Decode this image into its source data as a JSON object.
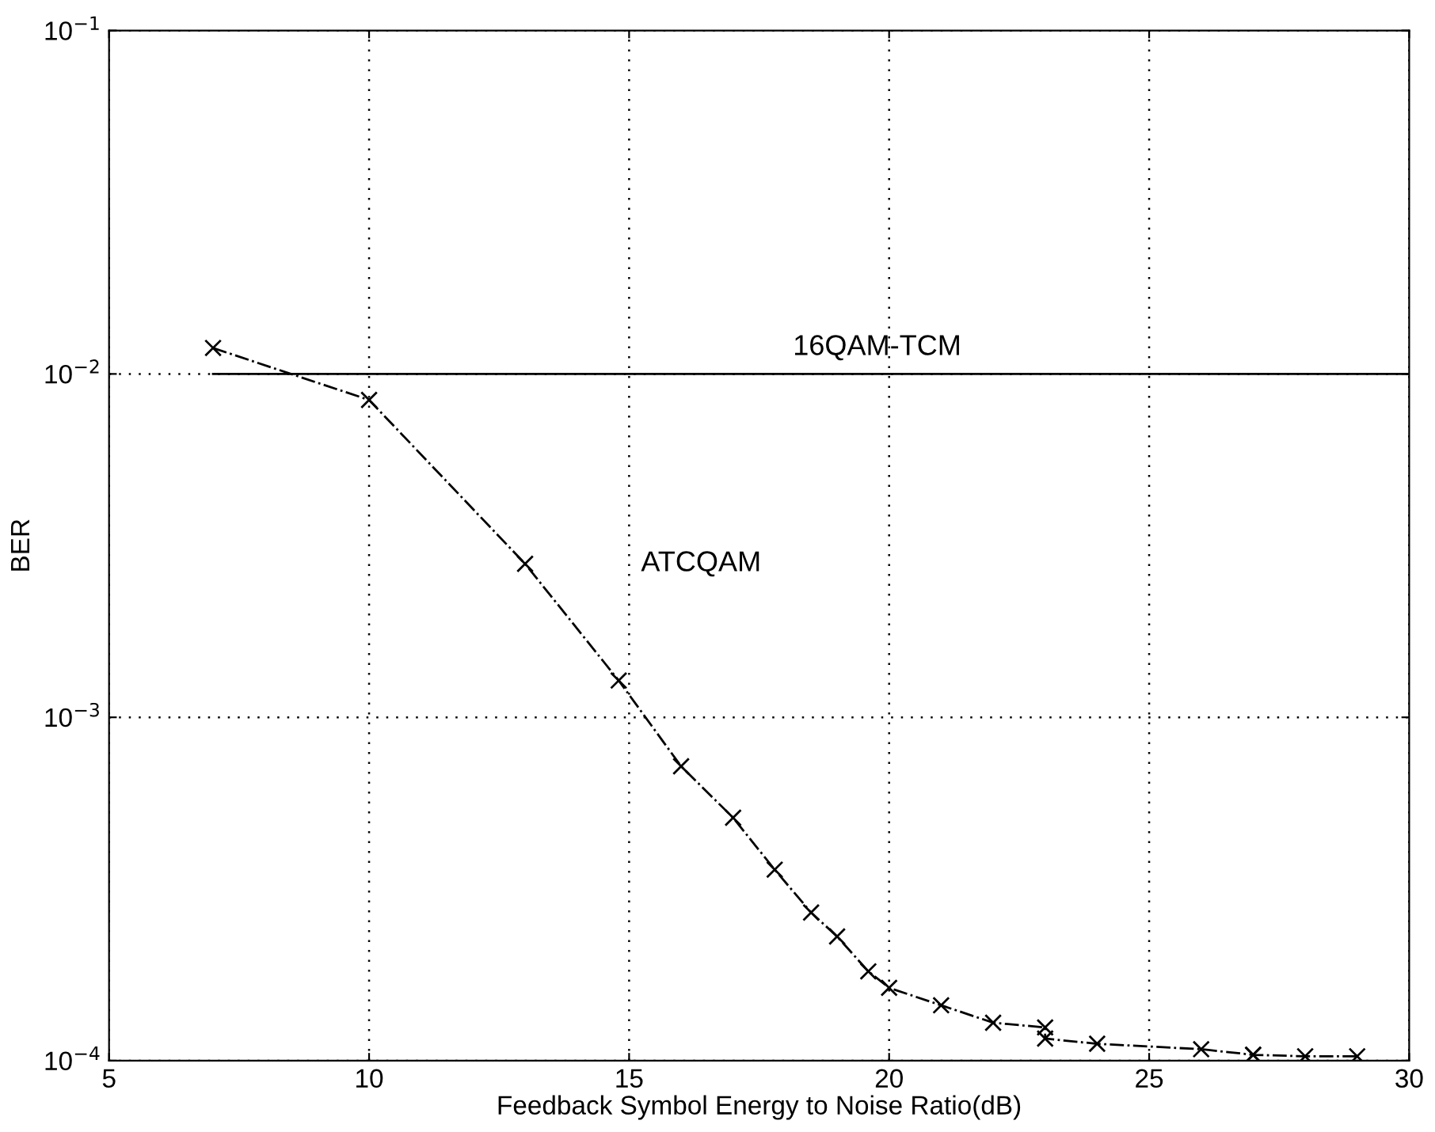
{
  "chart_data": {
    "type": "line",
    "xlabel": "Feedback Symbol Energy to Noise Ratio(dB)",
    "ylabel": "BER",
    "log": "y",
    "grid": true,
    "xlim": [
      5,
      30
    ],
    "xticks": [
      5,
      10,
      15,
      20,
      25,
      30
    ],
    "ylim": [
      0.0001,
      0.1
    ],
    "yticks": [
      {
        "value": 0.0001,
        "label": "10$^{−4}$"
      },
      {
        "value": 0.001,
        "label": "10$^{−3}$"
      },
      {
        "value": 0.01,
        "label": "10$^{−2}$"
      },
      {
        "value": 0.1,
        "label": "10$^{−1}$"
      }
    ],
    "series": [
      {
        "name": "16QAM-TCM",
        "color": "#000000",
        "marker": "none",
        "line_style": "solid",
        "x": [
          7,
          30
        ],
        "values": [
          0.01,
          0.01
        ]
      },
      {
        "name": "ATCQAM",
        "color": "#000000",
        "marker": "cross",
        "line_style": "dashdot",
        "x": [
          7,
          10,
          13,
          14.8,
          16,
          17,
          17.8,
          18.5,
          19,
          19.6,
          20,
          21,
          22,
          23,
          23,
          24,
          26,
          27,
          27,
          28,
          29
        ],
        "values": [
          0.0119,
          0.0084,
          0.0028,
          0.00128,
          0.00072,
          0.00051,
          0.00036,
          0.00027,
          0.00023,
          0.000182,
          0.000163,
          0.000145,
          0.000129,
          0.000125,
          0.000116,
          0.000112,
          0.000108,
          0.000104,
          0.000104,
          0.000103,
          0.000103
        ]
      }
    ]
  }
}
